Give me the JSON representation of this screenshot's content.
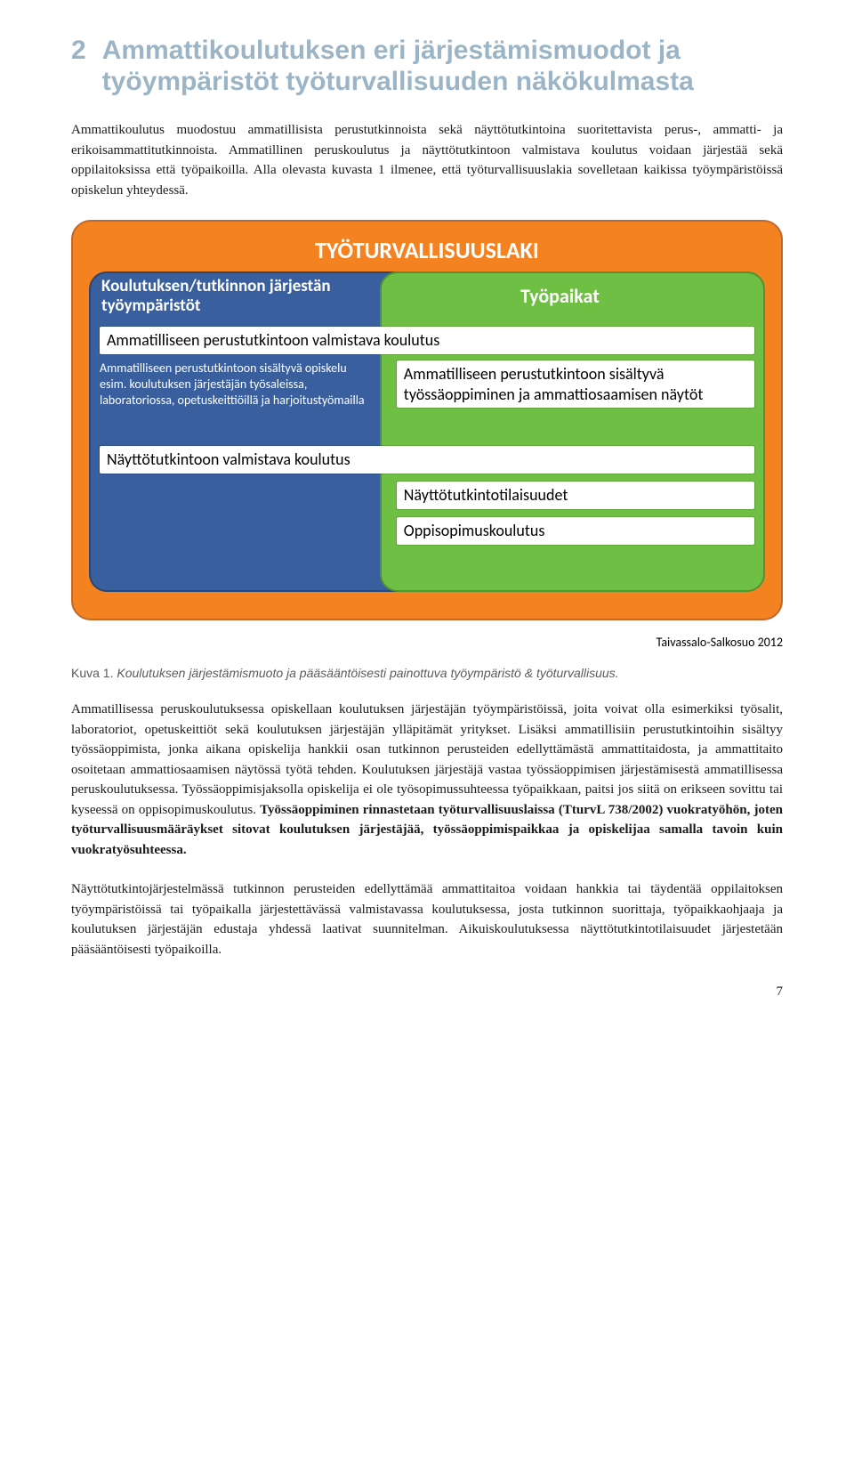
{
  "section": {
    "number": "2",
    "title": "Ammattikoulutuksen eri järjestämismuodot ja työympäristöt työturvallisuuden näkökulmasta"
  },
  "para1": "Ammattikoulutus muodostuu ammatillisista perustutkinnoista sekä näyttötutkintoina suoritettavista perus-, ammatti- ja erikoisammattitutkinnoista. Ammatillinen peruskoulutus ja näyttötutkintoon valmistava koulutus voidaan järjestää sekä oppilaitoksissa että työpaikoilla. Alla olevasta kuvasta 1 ilmenee, että työturvallisuuslakia sovelletaan kaikissa työympäristöissä opiskelun yhteydessä.",
  "diagram": {
    "outer_bg": "#f58220",
    "outer_border": "#c1682e",
    "title": "TYÖTURVALLISUUSLAKI",
    "title_color": "#ffffff",
    "left_zone": {
      "bg": "#3a5f9e",
      "border": "#2b466f",
      "title": "Koulutuksen/tutkinnon järjestän työympäristöt"
    },
    "right_zone": {
      "bg": "#6fbf44",
      "border": "#4d9530",
      "title": "Työpaikat"
    },
    "box_bg": "#ffffff",
    "box_text_color": "#000000",
    "box_wide_1": "Ammatilliseen perustutkintoon valmistava koulutus",
    "left_note": "Ammatilliseen perustutkintoon sisältyvä opiskelu esim. koulutuksen järjestäjän työsaleissa, laboratoriossa, opetuskeittiöillä ja harjoitustyömailla",
    "box_right_1": "Ammatilliseen perustutkintoon sisältyvä työssäoppiminen ja ammattiosaamisen näytöt",
    "box_wide_2": "Näyttötutkintoon valmistava koulutus",
    "box_right_2": "Näyttötutkintotilaisuudet",
    "box_right_3": "Oppisopimuskoulutus",
    "attribution": "Taivassalo-Salkosuo 2012"
  },
  "caption": {
    "label": "Kuva 1.",
    "text": "Koulutuksen järjestämismuoto ja pääsääntöisesti painottuva työympäristö & työturvallisuus."
  },
  "para2_a": "Ammatillisessa peruskoulutuksessa opiskellaan koulutuksen järjestäjän työympäristöissä, joita voivat olla esimerkiksi työsalit, laboratoriot, opetuskeittiöt sekä koulutuksen järjestäjän ylläpitämät yritykset. Lisäksi ammatillisiin perustutkintoihin sisältyy työssäoppimista, jonka aikana opiskelija hankkii osan tutkinnon perusteiden edellyttämästä ammattitaidosta, ja ammattitaito osoitetaan ammattiosaamisen näytössä työtä tehden. Koulutuksen järjestäjä vastaa työssäoppimisen järjestämisestä ammatillisessa peruskoulutuksessa. Työssäoppimisjaksolla opiskelija ei ole työsopimussuhteessa työpaikkaan, paitsi jos siitä on erikseen sovittu tai kyseessä on oppisopimuskoulutus. ",
  "para2_b": "Työssäoppiminen rinnastetaan työturvallisuuslaissa (TturvL 738/2002) vuokratyöhön, joten työturvallisuusmääräykset sitovat koulutuksen järjestäjää, työssäoppimispaikkaa ja opiskelijaa samalla tavoin kuin vuokratyösuhteessa.",
  "para3": "Näyttötutkintojärjestelmässä tutkinnon perusteiden edellyttämää ammattitaitoa voidaan hankkia tai täydentää oppilaitoksen työympäristöissä tai työpaikalla järjestettävässä valmistavassa koulutuksessa, josta tutkinnon suorittaja, työpaikkaohjaaja ja koulutuksen järjestäjän edustaja yhdessä laativat suunnitelman. Aikuiskoulutuksessa näyttötutkintotilaisuudet järjestetään pääsääntöisesti työpaikoilla.",
  "page_number": "7"
}
